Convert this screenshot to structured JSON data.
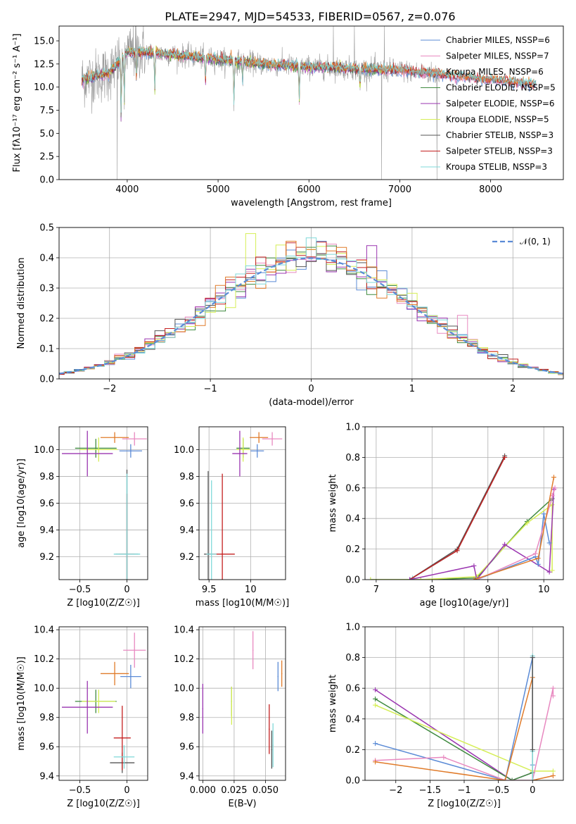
{
  "figure_title": "PLATE=2947, MJD=54533, FIBERID=0567, z=0.076",
  "colors": {
    "Chabrier MILES": "#5b8bd6",
    "Salpeter MILES": "#e889c0",
    "Kroupa MILES": "#9a9a9a",
    "Chabrier ELODIE": "#3f8a3f",
    "Salpeter ELODIE": "#9a35b0",
    "Kroupa ELODIE": "#d5ee55",
    "Chabrier STELIB": "#555555",
    "Salpeter STELIB": "#c42020",
    "Kroupa STELIB": "#7fd8d8",
    "orange": "#e07b2a",
    "gauss": "#5b8bd6"
  },
  "chart_data": [
    {
      "id": "spectrum",
      "type": "line",
      "title": "PLATE=2947, MJD=54533, FIBERID=0567, z=0.076",
      "xlabel": "wavelength [Angstrom, rest frame]",
      "ylabel": "Flux [fλ10⁻¹⁷ erg cm⁻² s⁻¹ A⁻¹]",
      "xlim": [
        3250,
        8800
      ],
      "ylim": [
        0,
        16.6
      ],
      "xticks": [
        4000,
        5000,
        6000,
        7000,
        8000
      ],
      "yticks": [
        0.0,
        2.5,
        5.0,
        7.5,
        10.0,
        12.5,
        15.0
      ],
      "grid": false,
      "legend_position": "top-right",
      "legend": [
        {
          "series": "Chabrier MILES",
          "label": "Chabrier MILES, NSSP=6"
        },
        {
          "series": "Salpeter MILES",
          "label": "Salpeter MILES, NSSP=7"
        },
        {
          "series": "Kroupa MILES",
          "label": "Kroupa MILES, NSSP=6"
        },
        {
          "series": "Chabrier ELODIE",
          "label": "Chabrier ELODIE, NSSP=5"
        },
        {
          "series": "Salpeter ELODIE",
          "label": "Salpeter ELODIE, NSSP=6"
        },
        {
          "series": "Kroupa ELODIE",
          "label": "Kroupa ELODIE, NSSP=5"
        },
        {
          "series": "Chabrier STELIB",
          "label": "Chabrier STELIB, NSSP=3"
        },
        {
          "series": "Salpeter STELIB",
          "label": "Salpeter STELIB, NSSP=3"
        },
        {
          "series": "Kroupa STELIB",
          "label": "Kroupa STELIB, NSSP=3"
        }
      ],
      "continuum_x": [
        3500,
        3800,
        4000,
        4200,
        4500,
        5000,
        5500,
        6000,
        6500,
        7000,
        7500,
        8000,
        8500
      ],
      "continuum_y": [
        10.8,
        11.5,
        13.8,
        13.8,
        13.5,
        13.0,
        12.5,
        12.2,
        12.0,
        11.8,
        11.3,
        10.8,
        10.3
      ],
      "data_xlim": [
        3500,
        7450
      ],
      "model_xlim": [
        3500,
        8500
      ],
      "absorption_lines": [
        {
          "x": 3933,
          "depth": 6.0
        },
        {
          "x": 3968,
          "depth": 5.0
        },
        {
          "x": 4102,
          "depth": 3.0
        },
        {
          "x": 4304,
          "depth": 4.0
        },
        {
          "x": 4861,
          "depth": 2.5
        },
        {
          "x": 5175,
          "depth": 4.5
        },
        {
          "x": 5270,
          "depth": 2.0
        },
        {
          "x": 5893,
          "depth": 3.5
        },
        {
          "x": 6563,
          "depth": 2.0
        }
      ],
      "spikes": [
        {
          "x": 3890,
          "y": 0
        },
        {
          "x": 4100,
          "y": 16.6
        },
        {
          "x": 6270,
          "y": 16.6
        },
        {
          "x": 6500,
          "y": 16.6
        },
        {
          "x": 6800,
          "y": 0
        },
        {
          "x": 6830,
          "y": 16.6
        },
        {
          "x": 7410,
          "y": 0
        }
      ]
    },
    {
      "id": "residual-distribution",
      "type": "histogram",
      "xlabel": "(data-model)/error",
      "ylabel": "Normed distribution",
      "xlim": [
        -2.5,
        2.5
      ],
      "ylim": [
        0,
        0.5
      ],
      "xticks": [
        -2,
        -1,
        0,
        1,
        2
      ],
      "yticks": [
        0.0,
        0.1,
        0.2,
        0.3,
        0.4,
        0.5
      ],
      "grid": true,
      "bin_width": 0.1,
      "legend": [
        {
          "label": "𝒩(0, 1)",
          "style": "dashed"
        }
      ],
      "legend_position": "top-right",
      "gaussian": {
        "mu": 0,
        "sigma": 1
      },
      "highlighted_bins": [
        {
          "x": -0.6,
          "value": 0.48,
          "color": "Kroupa ELODIE"
        },
        {
          "x": 0.6,
          "value": 0.44,
          "color": "Salpeter ELODIE"
        },
        {
          "x": 1.5,
          "value": 0.21,
          "color": "Salpeter MILES"
        }
      ]
    },
    {
      "id": "age-vs-Z",
      "type": "scatter",
      "xlabel": "Z [log10(Z/Z☉)]",
      "ylabel": "age  [log10(age/yr)]",
      "xlim": [
        -0.72,
        0.22
      ],
      "ylim": [
        9.03,
        10.17
      ],
      "xticks": [
        -0.5,
        0.0
      ],
      "yticks": [
        9.2,
        9.4,
        9.6,
        9.8,
        10.0
      ],
      "grid": true,
      "points": [
        {
          "x": -0.13,
          "y": 10.09,
          "xerr": 0.15,
          "yerr": 0.04,
          "color": "orange"
        },
        {
          "x": 0.08,
          "y": 10.08,
          "xerr": 0.13,
          "yerr": 0.05,
          "color": "Salpeter MILES"
        },
        {
          "x": 0.04,
          "y": 9.99,
          "xerr": 0.12,
          "yerr": 0.05,
          "color": "Chabrier MILES"
        },
        {
          "x": -0.33,
          "y": 10.01,
          "xerr": 0.22,
          "yerr": 0.07,
          "color": "Chabrier ELODIE"
        },
        {
          "x": -0.3,
          "y": 10.0,
          "xerr": 0.2,
          "yerr": 0.09,
          "color": "Kroupa ELODIE"
        },
        {
          "x": -0.42,
          "y": 9.97,
          "xerr": 0.27,
          "yerr": 0.17,
          "color": "Salpeter ELODIE"
        },
        {
          "x": 0.0,
          "y": 9.22,
          "xerr": 0.12,
          "yerr": 0.63,
          "color": "Chabrier STELIB"
        },
        {
          "x": 0.0,
          "y": 9.22,
          "xerr": 0.08,
          "yerr": 0.45,
          "color": "Salpeter STELIB"
        },
        {
          "x": 0.0,
          "y": 9.22,
          "xerr": 0.14,
          "yerr": 0.6,
          "color": "Kroupa STELIB"
        }
      ]
    },
    {
      "id": "age-vs-mass",
      "type": "scatter",
      "xlabel": "mass [log10(M/M☉)]",
      "ylabel": "",
      "xlim": [
        9.38,
        10.42
      ],
      "ylim": [
        9.03,
        10.17
      ],
      "xticks": [
        9.5,
        10.0
      ],
      "yticks": [
        9.2,
        9.4,
        9.6,
        9.8,
        10.0
      ],
      "grid": true,
      "points": [
        {
          "x": 10.1,
          "y": 10.09,
          "xerr": 0.11,
          "yerr": 0.04,
          "color": "orange"
        },
        {
          "x": 10.26,
          "y": 10.08,
          "xerr": 0.12,
          "yerr": 0.05,
          "color": "Salpeter MILES"
        },
        {
          "x": 10.08,
          "y": 9.99,
          "xerr": 0.08,
          "yerr": 0.05,
          "color": "Chabrier MILES"
        },
        {
          "x": 9.91,
          "y": 10.01,
          "xerr": 0.08,
          "yerr": 0.07,
          "color": "Chabrier ELODIE"
        },
        {
          "x": 9.91,
          "y": 10.0,
          "xerr": 0.08,
          "yerr": 0.09,
          "color": "Kroupa ELODIE"
        },
        {
          "x": 9.87,
          "y": 9.97,
          "xerr": 0.09,
          "yerr": 0.17,
          "color": "Salpeter ELODIE"
        },
        {
          "x": 9.49,
          "y": 9.22,
          "xerr": 0.05,
          "yerr": 0.62,
          "color": "Chabrier STELIB"
        },
        {
          "x": 9.66,
          "y": 9.22,
          "xerr": 0.15,
          "yerr": 0.6,
          "color": "Salpeter STELIB"
        },
        {
          "x": 9.53,
          "y": 9.22,
          "xerr": 0.06,
          "yerr": 0.55,
          "color": "Kroupa STELIB"
        }
      ]
    },
    {
      "id": "mass-weight-vs-age",
      "type": "line",
      "xlabel": "age  [log10(age/yr)]",
      "ylabel": "mass weight",
      "xlim": [
        6.8,
        10.35
      ],
      "ylim": [
        0,
        1.0
      ],
      "xticks": [
        7,
        8,
        9,
        10
      ],
      "yticks": [
        0.0,
        0.2,
        0.4,
        0.6,
        0.8,
        1.0
      ],
      "grid": true,
      "series": [
        {
          "name": "Kroupa STELIB",
          "color": "Kroupa STELIB",
          "x": [
            7.65,
            8.45,
            9.3
          ],
          "y": [
            0.01,
            0.19,
            0.8
          ]
        },
        {
          "name": "Chabrier STELIB",
          "color": "Chabrier STELIB",
          "x": [
            7.6,
            8.45,
            9.3
          ],
          "y": [
            0.0,
            0.2,
            0.81
          ]
        },
        {
          "name": "Salpeter STELIB",
          "color": "Salpeter STELIB",
          "x": [
            7.6,
            8.45,
            9.3
          ],
          "y": [
            0.0,
            0.19,
            0.8
          ]
        },
        {
          "name": "Chabrier ELODIE",
          "color": "Chabrier ELODIE",
          "x": [
            6.9,
            7.8,
            8.8,
            9.7,
            10.15
          ],
          "y": [
            0.0,
            0.0,
            0.01,
            0.38,
            0.53
          ]
        },
        {
          "name": "Kroupa ELODIE",
          "color": "Kroupa ELODIE",
          "x": [
            6.9,
            7.8,
            8.8,
            9.7,
            10.15,
            10.15
          ],
          "y": [
            0.0,
            0.0,
            0.02,
            0.37,
            0.49,
            0.06
          ]
        },
        {
          "name": "Salpeter ELODIE",
          "color": "Salpeter ELODIE",
          "x": [
            7.6,
            8.75,
            8.8,
            9.3,
            10.1,
            10.18
          ],
          "y": [
            0.0,
            0.09,
            0.0,
            0.23,
            0.05,
            0.59
          ]
        },
        {
          "name": "Chabrier MILES",
          "color": "Chabrier MILES",
          "x": [
            8.8,
            9.85,
            9.9,
            10.0,
            10.1
          ],
          "y": [
            0.0,
            0.15,
            0.1,
            0.43,
            0.24
          ]
        },
        {
          "name": "Salpeter MILES",
          "color": "Salpeter MILES",
          "x": [
            8.8,
            9.85,
            10.2,
            10.15
          ],
          "y": [
            0.0,
            0.17,
            0.6,
            0.55
          ]
        },
        {
          "name": "orange",
          "color": "orange",
          "x": [
            8.75,
            9.9,
            10.18
          ],
          "y": [
            0.0,
            0.14,
            0.67
          ]
        }
      ]
    },
    {
      "id": "mass-vs-Z",
      "type": "scatter",
      "xlabel": "Z [log10(Z/Z☉)]",
      "ylabel": "mass [log10(M/M☉)]",
      "xlim": [
        -0.72,
        0.22
      ],
      "ylim": [
        9.37,
        10.42
      ],
      "xticks": [
        -0.5,
        0.0
      ],
      "yticks": [
        9.4,
        9.6,
        9.8,
        10.0,
        10.2,
        10.4
      ],
      "grid": true,
      "points": [
        {
          "x": -0.13,
          "y": 10.1,
          "xerr": 0.15,
          "yerr": 0.08,
          "color": "orange"
        },
        {
          "x": 0.08,
          "y": 10.26,
          "xerr": 0.12,
          "yerr": 0.12,
          "color": "Salpeter MILES"
        },
        {
          "x": 0.04,
          "y": 10.08,
          "xerr": 0.11,
          "yerr": 0.08,
          "color": "Chabrier MILES"
        },
        {
          "x": -0.33,
          "y": 9.91,
          "xerr": 0.22,
          "yerr": 0.08,
          "color": "Chabrier ELODIE"
        },
        {
          "x": -0.3,
          "y": 9.91,
          "xerr": 0.18,
          "yerr": 0.08,
          "color": "Kroupa ELODIE"
        },
        {
          "x": -0.42,
          "y": 9.87,
          "xerr": 0.27,
          "yerr": 0.18,
          "color": "Salpeter ELODIE"
        },
        {
          "x": -0.05,
          "y": 9.49,
          "xerr": 0.13,
          "yerr": 0.07,
          "color": "Chabrier STELIB"
        },
        {
          "x": -0.05,
          "y": 9.66,
          "xerr": 0.09,
          "yerr": 0.22,
          "color": "Salpeter STELIB"
        },
        {
          "x": -0.03,
          "y": 9.53,
          "xerr": 0.11,
          "yerr": 0.08,
          "color": "Kroupa STELIB"
        }
      ]
    },
    {
      "id": "mass-vs-EBV",
      "type": "scatter",
      "xlabel": "E(B-V)",
      "ylabel": "",
      "xlim": [
        -0.003,
        0.066
      ],
      "ylim": [
        9.37,
        10.42
      ],
      "xticks": [
        0.0,
        0.025,
        0.05
      ],
      "xticklabels": [
        "0.000",
        "0.025",
        "0.050"
      ],
      "yticks": [
        9.4,
        9.6,
        9.8,
        10.0,
        10.2,
        10.4
      ],
      "grid": true,
      "points": [
        {
          "x": 0.063,
          "y": 10.1,
          "xerr": 0,
          "yerr": 0.09,
          "color": "orange"
        },
        {
          "x": 0.04,
          "y": 10.26,
          "xerr": 0,
          "yerr": 0.13,
          "color": "Salpeter MILES"
        },
        {
          "x": 0.06,
          "y": 10.08,
          "xerr": 0,
          "yerr": 0.1,
          "color": "Chabrier MILES"
        },
        {
          "x": 0.023,
          "y": 9.91,
          "xerr": 0,
          "yerr": 0.1,
          "color": "Chabrier ELODIE"
        },
        {
          "x": 0.023,
          "y": 9.88,
          "xerr": 0,
          "yerr": 0.13,
          "color": "Kroupa ELODIE"
        },
        {
          "x": 0.0,
          "y": 9.86,
          "xerr": 0,
          "yerr": 0.17,
          "color": "Salpeter ELODIE"
        },
        {
          "x": 0.053,
          "y": 9.72,
          "xerr": 0,
          "yerr": 0.17,
          "color": "Salpeter STELIB"
        },
        {
          "x": 0.056,
          "y": 9.61,
          "xerr": 0,
          "yerr": 0.15,
          "color": "Kroupa STELIB"
        },
        {
          "x": 0.055,
          "y": 9.58,
          "xerr": 0,
          "yerr": 0.13,
          "color": "Chabrier STELIB"
        }
      ]
    },
    {
      "id": "mass-weight-vs-Z",
      "type": "line",
      "xlabel": "Z [log10(Z/Z☉)]",
      "ylabel": "mass weight",
      "xlim": [
        -2.45,
        0.45
      ],
      "ylim": [
        0,
        1.0
      ],
      "xticks": [
        -2.0,
        -1.5,
        -1.0,
        -0.5,
        0.0
      ],
      "yticks": [
        0.0,
        0.2,
        0.4,
        0.6,
        0.8,
        1.0
      ],
      "grid": true,
      "series": [
        {
          "name": "Salpeter ELODIE",
          "color": "Salpeter ELODIE",
          "x": [
            -2.3,
            -0.3,
            0.0
          ],
          "y": [
            0.59,
            0.0,
            0.05
          ]
        },
        {
          "name": "Chabrier ELODIE",
          "color": "Chabrier ELODIE",
          "x": [
            -2.3,
            -0.3,
            0.0
          ],
          "y": [
            0.53,
            0.0,
            0.05
          ]
        },
        {
          "name": "Kroupa ELODIE",
          "color": "Kroupa ELODIE",
          "x": [
            -2.3,
            0.0,
            0.3
          ],
          "y": [
            0.49,
            0.06,
            0.06
          ]
        },
        {
          "name": "Chabrier MILES",
          "color": "Chabrier MILES",
          "x": [
            -2.3,
            -0.4,
            0.0,
            0.0
          ],
          "y": [
            0.24,
            0.0,
            0.8,
            0.1
          ]
        },
        {
          "name": "Salpeter MILES",
          "color": "Salpeter MILES",
          "x": [
            -2.3,
            -1.3,
            -0.4,
            0.0,
            0.3,
            0.3
          ],
          "y": [
            0.13,
            0.15,
            0.0,
            0.0,
            0.6,
            0.55
          ]
        },
        {
          "name": "orange",
          "color": "orange",
          "x": [
            -2.3,
            -0.4,
            0.0,
            0.0,
            0.3
          ],
          "y": [
            0.12,
            0.0,
            0.67,
            0.0,
            0.03
          ]
        },
        {
          "name": "Kroupa STELIB",
          "color": "Kroupa STELIB",
          "x": [
            0.0,
            0.0,
            0.0
          ],
          "y": [
            0.81,
            0.19,
            0.0
          ]
        },
        {
          "name": "Chabrier STELIB",
          "color": "Chabrier STELIB",
          "x": [
            0.0,
            0.0
          ],
          "y": [
            0.8,
            0.2
          ]
        }
      ]
    }
  ]
}
